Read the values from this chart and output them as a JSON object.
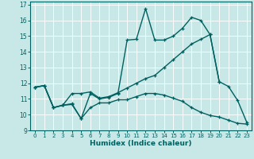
{
  "xlabel": "Humidex (Indice chaleur)",
  "xlim": [
    -0.5,
    23.5
  ],
  "ylim": [
    9,
    17.2
  ],
  "yticks": [
    9,
    10,
    11,
    12,
    13,
    14,
    15,
    16,
    17
  ],
  "xticks": [
    0,
    1,
    2,
    3,
    4,
    5,
    6,
    7,
    8,
    9,
    10,
    11,
    12,
    13,
    14,
    15,
    16,
    17,
    18,
    19,
    20,
    21,
    22,
    23
  ],
  "bg_color": "#c8e8e8",
  "line_color": "#006060",
  "grid_color": "#b0d8d8",
  "line1_x": [
    0,
    1,
    2,
    3,
    4,
    5,
    6,
    7,
    8,
    9,
    10,
    11,
    12,
    13,
    14,
    15,
    16,
    17,
    18,
    19,
    20,
    21,
    22,
    23
  ],
  "line1_y": [
    11.75,
    11.85,
    10.45,
    10.6,
    10.7,
    9.75,
    11.35,
    11.0,
    11.1,
    11.35,
    14.75,
    14.8,
    16.75,
    14.75,
    14.75,
    15.0,
    15.5,
    16.2,
    16.0,
    15.1,
    12.1,
    11.8,
    10.9,
    9.5
  ],
  "line2_x": [
    0,
    1,
    2,
    3,
    4,
    5,
    6,
    7,
    8,
    9,
    10,
    11,
    12,
    13,
    14,
    15,
    16,
    17,
    18,
    19,
    20
  ],
  "line2_y": [
    11.75,
    11.85,
    10.45,
    10.6,
    11.35,
    11.35,
    11.45,
    11.05,
    11.15,
    11.4,
    11.7,
    12.0,
    12.3,
    12.5,
    13.0,
    13.5,
    14.0,
    14.5,
    14.8,
    15.1,
    12.1
  ],
  "line3_x": [
    0,
    1,
    2,
    3,
    4,
    5,
    6,
    7,
    8,
    9,
    10,
    11,
    12,
    13,
    14,
    15,
    16,
    17,
    18,
    19,
    20,
    21,
    22,
    23
  ],
  "line3_y": [
    11.75,
    11.85,
    10.45,
    10.6,
    10.65,
    9.75,
    10.45,
    10.75,
    10.75,
    10.95,
    10.95,
    11.15,
    11.35,
    11.35,
    11.25,
    11.05,
    10.85,
    10.45,
    10.15,
    9.95,
    9.85,
    9.65,
    9.45,
    9.4
  ]
}
